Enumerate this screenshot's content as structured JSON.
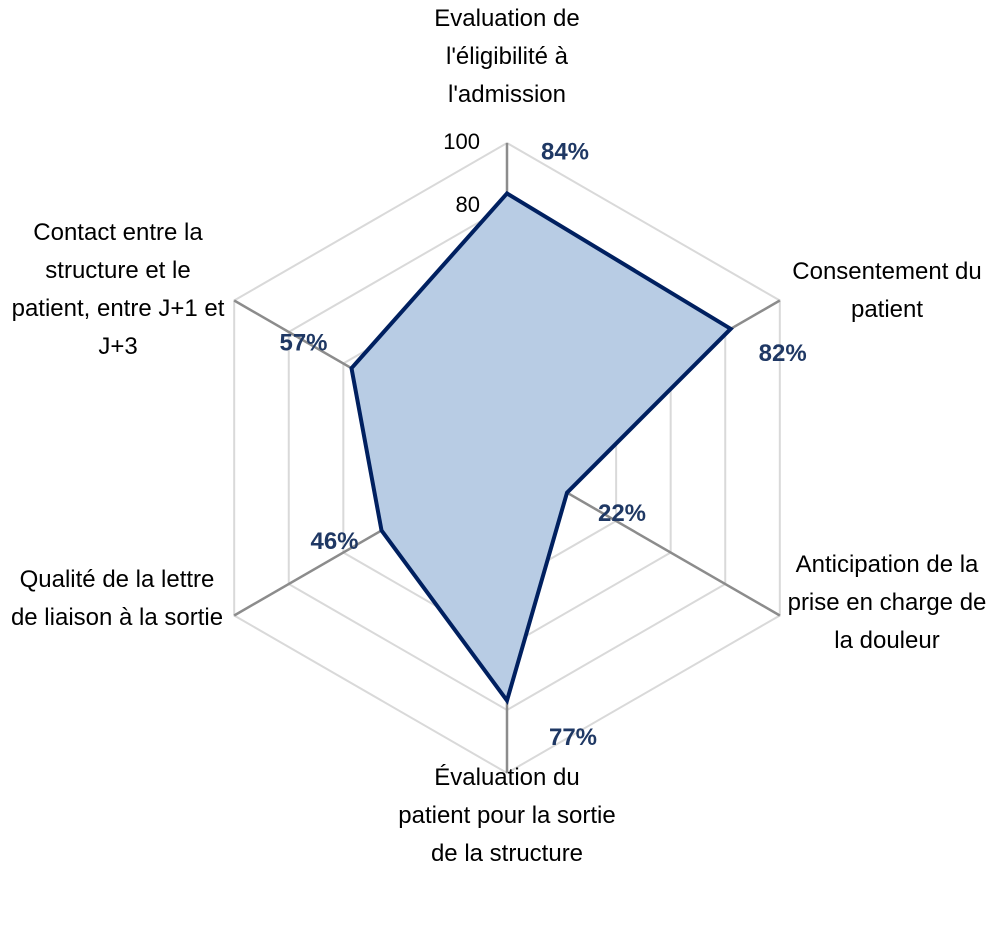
{
  "chart_data": {
    "type": "radar",
    "categories": [
      "Evaluation de l'éligibilité à l'admission",
      "Consentement du patient",
      "Anticipation de la prise en charge de la douleur",
      "Évaluation du patient pour la sortie de la structure",
      "Qualité de la lettre de liaison à la sortie",
      "Contact entre la structure et le patient, entre J+1 et J+3"
    ],
    "values": [
      84,
      82,
      22,
      77,
      46,
      57
    ],
    "value_labels": [
      "84%",
      "82%",
      "22%",
      "77%",
      "46%",
      "57%"
    ],
    "color": "#002060",
    "fill": "#b8cce4",
    "ylim": [
      0,
      100
    ],
    "yticks": [
      0,
      20,
      40,
      60,
      80,
      100
    ],
    "grid": true
  }
}
